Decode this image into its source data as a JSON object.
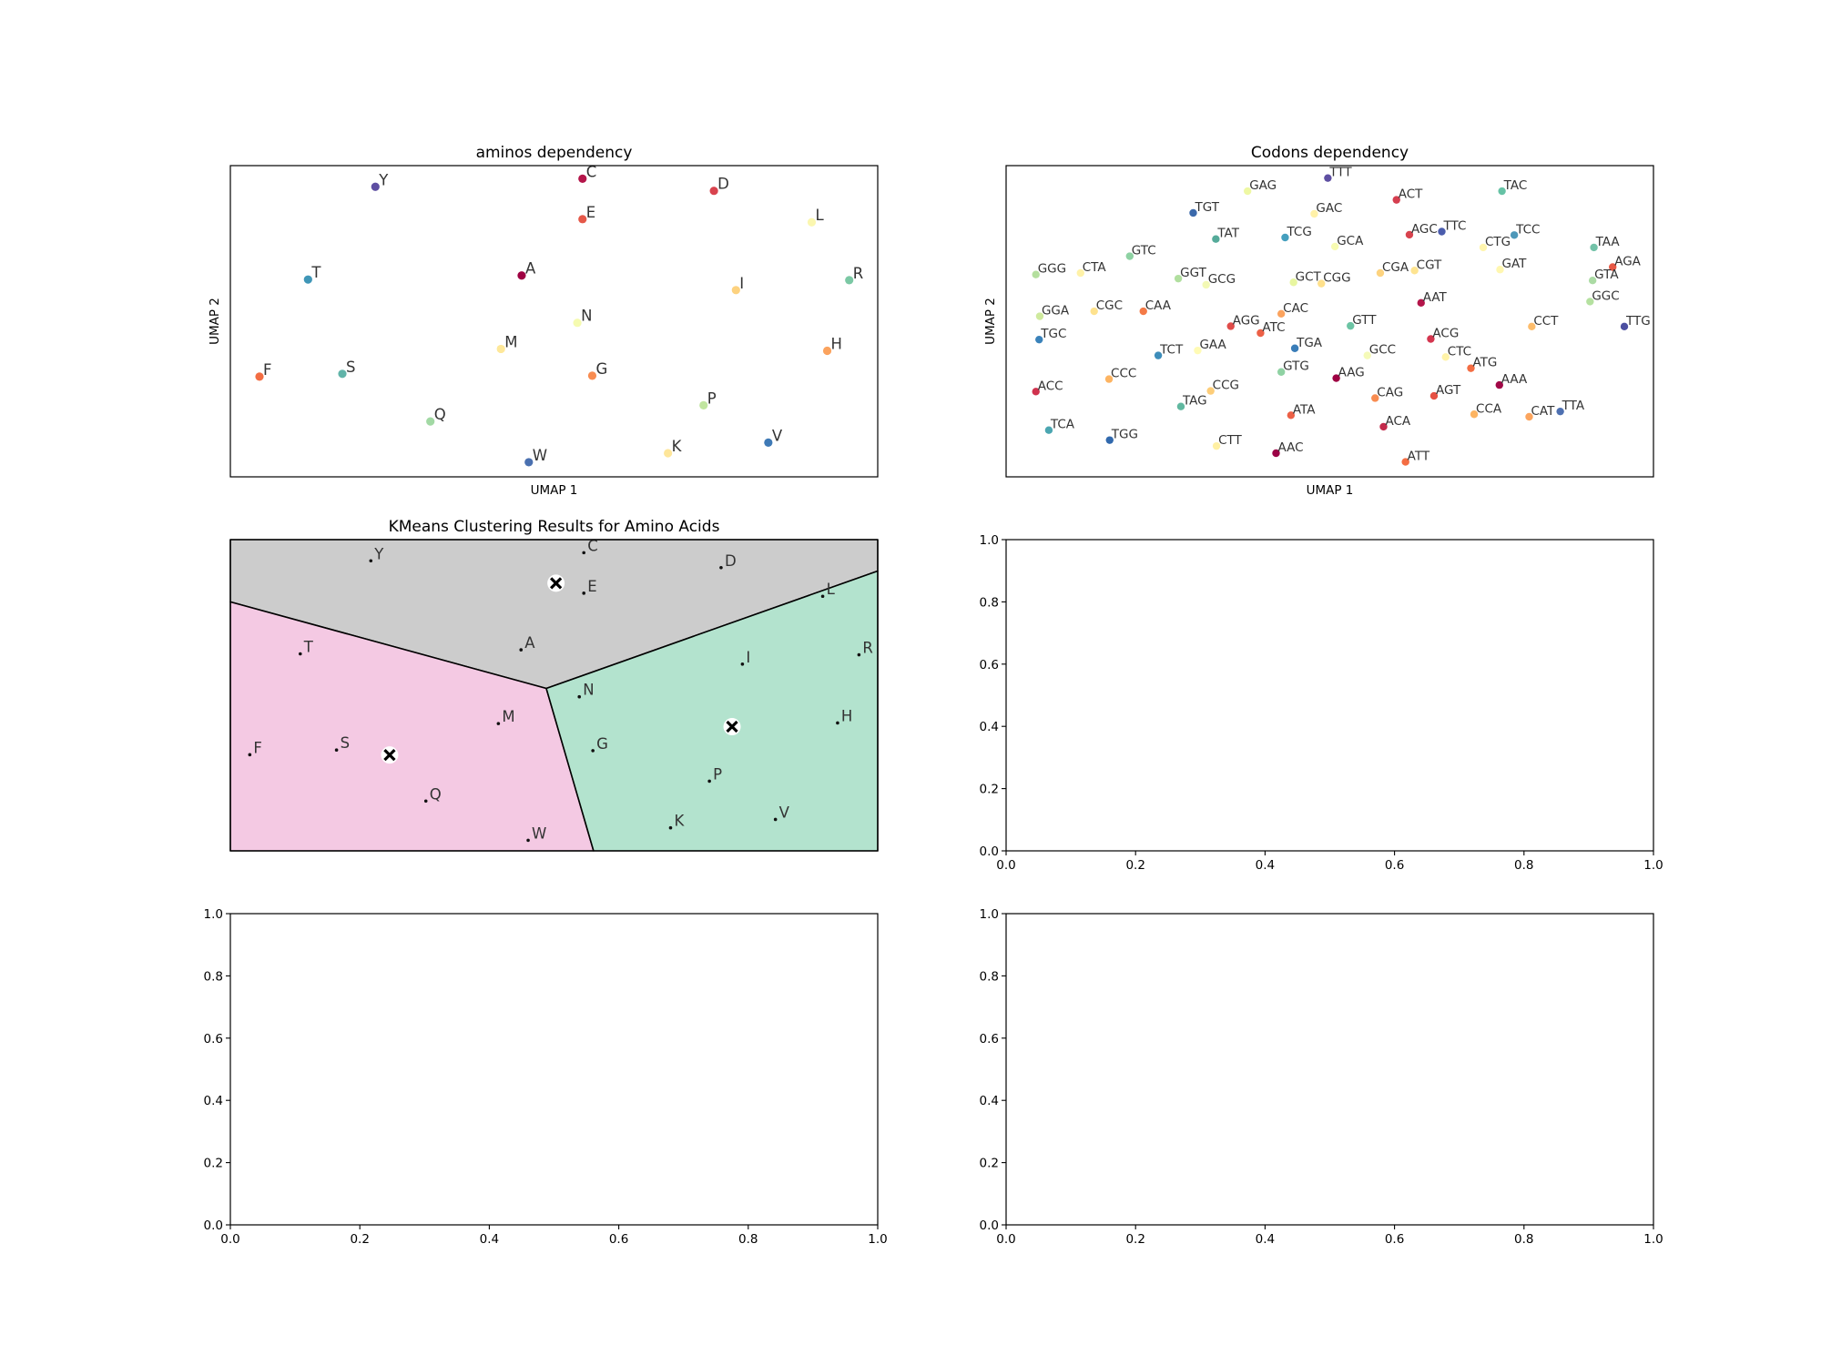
{
  "chart_data": [
    {
      "panel": "top-left",
      "type": "scatter",
      "title": "aminos dependency",
      "xlabel": "UMAP 1",
      "ylabel": "UMAP 2",
      "xlim": [
        0,
        1
      ],
      "ylim": [
        0,
        1
      ],
      "ticks": false,
      "points": [
        {
          "label": "Y",
          "x": 0.224,
          "y": 0.932,
          "color": "#5e4fa2"
        },
        {
          "label": "C",
          "x": 0.544,
          "y": 0.958,
          "color": "#b4154a"
        },
        {
          "label": "D",
          "x": 0.747,
          "y": 0.919,
          "color": "#d8434e"
        },
        {
          "label": "E",
          "x": 0.544,
          "y": 0.828,
          "color": "#e55849"
        },
        {
          "label": "L",
          "x": 0.898,
          "y": 0.818,
          "color": "#fbf7b0"
        },
        {
          "label": "T",
          "x": 0.12,
          "y": 0.634,
          "color": "#3f96b7"
        },
        {
          "label": "A",
          "x": 0.45,
          "y": 0.647,
          "color": "#9e0142"
        },
        {
          "label": "I",
          "x": 0.781,
          "y": 0.6,
          "color": "#fdd27f"
        },
        {
          "label": "R",
          "x": 0.956,
          "y": 0.632,
          "color": "#7bc8a4"
        },
        {
          "label": "N",
          "x": 0.536,
          "y": 0.495,
          "color": "#f5fbb0"
        },
        {
          "label": "M",
          "x": 0.418,
          "y": 0.411,
          "color": "#fee89a"
        },
        {
          "label": "H",
          "x": 0.922,
          "y": 0.405,
          "color": "#fba35e"
        },
        {
          "label": "F",
          "x": 0.045,
          "y": 0.322,
          "color": "#f36d43"
        },
        {
          "label": "S",
          "x": 0.173,
          "y": 0.331,
          "color": "#61b4a9"
        },
        {
          "label": "G",
          "x": 0.559,
          "y": 0.325,
          "color": "#f88c51"
        },
        {
          "label": "P",
          "x": 0.731,
          "y": 0.23,
          "color": "#c1e5a0"
        },
        {
          "label": "Q",
          "x": 0.309,
          "y": 0.178,
          "color": "#a2d9a4"
        },
        {
          "label": "V",
          "x": 0.831,
          "y": 0.11,
          "color": "#3f7ab6"
        },
        {
          "label": "K",
          "x": 0.676,
          "y": 0.076,
          "color": "#fee69a"
        },
        {
          "label": "W",
          "x": 0.461,
          "y": 0.047,
          "color": "#4a70b0"
        }
      ]
    },
    {
      "panel": "top-right",
      "type": "scatter",
      "title": "Codons dependency",
      "xlabel": "UMAP 1",
      "ylabel": "UMAP 2",
      "xlim": [
        0,
        1
      ],
      "ylim": [
        0,
        1
      ],
      "ticks": false,
      "points": [
        {
          "label": "TTT",
          "x": 0.497,
          "y": 0.96,
          "color": "#5e4fa2"
        },
        {
          "label": "GAG",
          "x": 0.373,
          "y": 0.918,
          "color": "#eef8a3"
        },
        {
          "label": "TAC",
          "x": 0.766,
          "y": 0.918,
          "color": "#66c2a5"
        },
        {
          "label": "ACT",
          "x": 0.603,
          "y": 0.89,
          "color": "#d53e4f"
        },
        {
          "label": "TGT",
          "x": 0.289,
          "y": 0.848,
          "color": "#3b69ab"
        },
        {
          "label": "GAC",
          "x": 0.476,
          "y": 0.845,
          "color": "#fff1a8"
        },
        {
          "label": "AGC",
          "x": 0.623,
          "y": 0.778,
          "color": "#d8434e"
        },
        {
          "label": "TTC",
          "x": 0.673,
          "y": 0.788,
          "color": "#4a5cac"
        },
        {
          "label": "TCC",
          "x": 0.785,
          "y": 0.777,
          "color": "#4e98b9"
        },
        {
          "label": "TAT",
          "x": 0.324,
          "y": 0.764,
          "color": "#55ab9a"
        },
        {
          "label": "TCG",
          "x": 0.431,
          "y": 0.769,
          "color": "#459fbe"
        },
        {
          "label": "GCA",
          "x": 0.508,
          "y": 0.74,
          "color": "#f7fbb2"
        },
        {
          "label": "CTG",
          "x": 0.737,
          "y": 0.737,
          "color": "#fff5ae"
        },
        {
          "label": "TAA",
          "x": 0.908,
          "y": 0.737,
          "color": "#73c2a8"
        },
        {
          "label": "GTC",
          "x": 0.191,
          "y": 0.709,
          "color": "#8ed2a3"
        },
        {
          "label": "AGA",
          "x": 0.937,
          "y": 0.674,
          "color": "#e75845"
        },
        {
          "label": "GGG",
          "x": 0.046,
          "y": 0.65,
          "color": "#b4df9e"
        },
        {
          "label": "CTA",
          "x": 0.115,
          "y": 0.655,
          "color": "#fff2a8"
        },
        {
          "label": "GAT",
          "x": 0.763,
          "y": 0.666,
          "color": "#fff7b0"
        },
        {
          "label": "CGA",
          "x": 0.578,
          "y": 0.655,
          "color": "#fdd37f"
        },
        {
          "label": "CGT",
          "x": 0.631,
          "y": 0.663,
          "color": "#fee491"
        },
        {
          "label": "GGT",
          "x": 0.266,
          "y": 0.637,
          "color": "#b1df9f"
        },
        {
          "label": "GTA",
          "x": 0.906,
          "y": 0.631,
          "color": "#abdba4"
        },
        {
          "label": "GCG",
          "x": 0.309,
          "y": 0.617,
          "color": "#f3f9b5"
        },
        {
          "label": "GCT",
          "x": 0.444,
          "y": 0.625,
          "color": "#e8f6a0"
        },
        {
          "label": "CGG",
          "x": 0.487,
          "y": 0.621,
          "color": "#fee08b"
        },
        {
          "label": "AAT",
          "x": 0.641,
          "y": 0.559,
          "color": "#b4154a"
        },
        {
          "label": "GGC",
          "x": 0.902,
          "y": 0.563,
          "color": "#b5e1a0"
        },
        {
          "label": "GGA",
          "x": 0.052,
          "y": 0.516,
          "color": "#cfea9e"
        },
        {
          "label": "CGC",
          "x": 0.136,
          "y": 0.532,
          "color": "#fee28e"
        },
        {
          "label": "CAA",
          "x": 0.212,
          "y": 0.532,
          "color": "#f47a47"
        },
        {
          "label": "CAC",
          "x": 0.425,
          "y": 0.524,
          "color": "#fba35e"
        },
        {
          "label": "AGG",
          "x": 0.347,
          "y": 0.484,
          "color": "#e04c4a"
        },
        {
          "label": "ATC",
          "x": 0.393,
          "y": 0.462,
          "color": "#ec6046"
        },
        {
          "label": "GTT",
          "x": 0.532,
          "y": 0.485,
          "color": "#6cc4a4"
        },
        {
          "label": "CCT",
          "x": 0.812,
          "y": 0.483,
          "color": "#fdbd6c"
        },
        {
          "label": "TTG",
          "x": 0.955,
          "y": 0.483,
          "color": "#4b4fa0"
        },
        {
          "label": "ACG",
          "x": 0.656,
          "y": 0.443,
          "color": "#d4364f"
        },
        {
          "label": "TGC",
          "x": 0.051,
          "y": 0.441,
          "color": "#3a82ba"
        },
        {
          "label": "TGA",
          "x": 0.446,
          "y": 0.413,
          "color": "#3a7db8"
        },
        {
          "label": "GAA",
          "x": 0.296,
          "y": 0.406,
          "color": "#fffbb5"
        },
        {
          "label": "TCT",
          "x": 0.235,
          "y": 0.39,
          "color": "#3d8dba"
        },
        {
          "label": "GCC",
          "x": 0.558,
          "y": 0.39,
          "color": "#f5fab8"
        },
        {
          "label": "CTC",
          "x": 0.679,
          "y": 0.385,
          "color": "#fff3a8"
        },
        {
          "label": "ATG",
          "x": 0.718,
          "y": 0.349,
          "color": "#f36d43"
        },
        {
          "label": "GTG",
          "x": 0.425,
          "y": 0.337,
          "color": "#8fd2a3"
        },
        {
          "label": "AAG",
          "x": 0.51,
          "y": 0.317,
          "color": "#9e0142"
        },
        {
          "label": "CCC",
          "x": 0.159,
          "y": 0.314,
          "color": "#fdb462"
        },
        {
          "label": "AAA",
          "x": 0.762,
          "y": 0.295,
          "color": "#a10847"
        },
        {
          "label": "ACC",
          "x": 0.046,
          "y": 0.274,
          "color": "#d0324e"
        },
        {
          "label": "CCG",
          "x": 0.316,
          "y": 0.276,
          "color": "#fdcd79"
        },
        {
          "label": "AGT",
          "x": 0.661,
          "y": 0.26,
          "color": "#e65244"
        },
        {
          "label": "CAG",
          "x": 0.57,
          "y": 0.253,
          "color": "#f88c51"
        },
        {
          "label": "TAG",
          "x": 0.27,
          "y": 0.226,
          "color": "#61b8a0"
        },
        {
          "label": "ATA",
          "x": 0.44,
          "y": 0.198,
          "color": "#ec6046"
        },
        {
          "label": "CCA",
          "x": 0.723,
          "y": 0.201,
          "color": "#fdb462"
        },
        {
          "label": "CAT",
          "x": 0.808,
          "y": 0.193,
          "color": "#fca55e"
        },
        {
          "label": "TTA",
          "x": 0.856,
          "y": 0.21,
          "color": "#4e70b1"
        },
        {
          "label": "ACA",
          "x": 0.583,
          "y": 0.161,
          "color": "#c32a4b"
        },
        {
          "label": "TCA",
          "x": 0.066,
          "y": 0.15,
          "color": "#4ba6b1"
        },
        {
          "label": "TGG",
          "x": 0.16,
          "y": 0.118,
          "color": "#3169ad"
        },
        {
          "label": "CTT",
          "x": 0.325,
          "y": 0.099,
          "color": "#fff0a3"
        },
        {
          "label": "AAC",
          "x": 0.417,
          "y": 0.076,
          "color": "#9b0346"
        },
        {
          "label": "ATT",
          "x": 0.617,
          "y": 0.048,
          "color": "#f46d43"
        }
      ]
    },
    {
      "panel": "middle-left",
      "type": "scatter",
      "title": "KMeans Clustering Results for Amino Acids",
      "xlabel": "",
      "ylabel": "",
      "xlim": [
        0,
        1
      ],
      "ylim": [
        0,
        1
      ],
      "ticks": false,
      "regions": [
        {
          "color": "#cccccc",
          "polygon": [
            [
              0,
              0.8
            ],
            [
              0.488,
              0.522
            ],
            [
              1,
              0.899
            ],
            [
              1,
              1
            ],
            [
              0,
              1
            ]
          ]
        },
        {
          "color": "#f4c9e3",
          "polygon": [
            [
              0,
              0
            ],
            [
              0.561,
              0
            ],
            [
              0.488,
              0.522
            ],
            [
              0,
              0.8
            ]
          ]
        },
        {
          "color": "#b3e3ce",
          "polygon": [
            [
              0.561,
              0
            ],
            [
              1,
              0
            ],
            [
              1,
              0.899
            ],
            [
              0.488,
              0.522
            ]
          ]
        }
      ],
      "centroids": [
        {
          "x": 0.503,
          "y": 0.86
        },
        {
          "x": 0.246,
          "y": 0.308
        },
        {
          "x": 0.775,
          "y": 0.399
        }
      ],
      "points": [
        {
          "label": "Y",
          "x": 0.217,
          "y": 0.932
        },
        {
          "label": "C",
          "x": 0.546,
          "y": 0.958
        },
        {
          "label": "D",
          "x": 0.758,
          "y": 0.91
        },
        {
          "label": "E",
          "x": 0.546,
          "y": 0.828
        },
        {
          "label": "L",
          "x": 0.915,
          "y": 0.818
        },
        {
          "label": "T",
          "x": 0.108,
          "y": 0.633
        },
        {
          "label": "A",
          "x": 0.449,
          "y": 0.646
        },
        {
          "label": "I",
          "x": 0.791,
          "y": 0.6
        },
        {
          "label": "R",
          "x": 0.971,
          "y": 0.63
        },
        {
          "label": "N",
          "x": 0.539,
          "y": 0.495
        },
        {
          "label": "M",
          "x": 0.414,
          "y": 0.409
        },
        {
          "label": "H",
          "x": 0.938,
          "y": 0.411
        },
        {
          "label": "F",
          "x": 0.03,
          "y": 0.309
        },
        {
          "label": "S",
          "x": 0.164,
          "y": 0.324
        },
        {
          "label": "G",
          "x": 0.56,
          "y": 0.322
        },
        {
          "label": "P",
          "x": 0.74,
          "y": 0.224
        },
        {
          "label": "Q",
          "x": 0.302,
          "y": 0.16
        },
        {
          "label": "V",
          "x": 0.842,
          "y": 0.101
        },
        {
          "label": "K",
          "x": 0.68,
          "y": 0.074
        },
        {
          "label": "W",
          "x": 0.46,
          "y": 0.034
        }
      ]
    },
    {
      "panel": "middle-right",
      "type": "scatter",
      "title": "",
      "xlim": [
        0,
        1
      ],
      "ylim": [
        0,
        1
      ],
      "ticks": true,
      "xticks": [
        "0.0",
        "0.2",
        "0.4",
        "0.6",
        "0.8",
        "1.0"
      ],
      "yticks": [
        "0.0",
        "0.2",
        "0.4",
        "0.6",
        "0.8",
        "1.0"
      ],
      "points": []
    },
    {
      "panel": "bottom-left",
      "type": "scatter",
      "title": "",
      "xlim": [
        0,
        1
      ],
      "ylim": [
        0,
        1
      ],
      "ticks": true,
      "xticks": [
        "0.0",
        "0.2",
        "0.4",
        "0.6",
        "0.8",
        "1.0"
      ],
      "yticks": [
        "0.0",
        "0.2",
        "0.4",
        "0.6",
        "0.8",
        "1.0"
      ],
      "points": []
    },
    {
      "panel": "bottom-right",
      "type": "scatter",
      "title": "",
      "xlim": [
        0,
        1
      ],
      "ylim": [
        0,
        1
      ],
      "ticks": true,
      "xticks": [
        "0.0",
        "0.2",
        "0.4",
        "0.6",
        "0.8",
        "1.0"
      ],
      "yticks": [
        "0.0",
        "0.2",
        "0.4",
        "0.6",
        "0.8",
        "1.0"
      ],
      "points": []
    }
  ]
}
